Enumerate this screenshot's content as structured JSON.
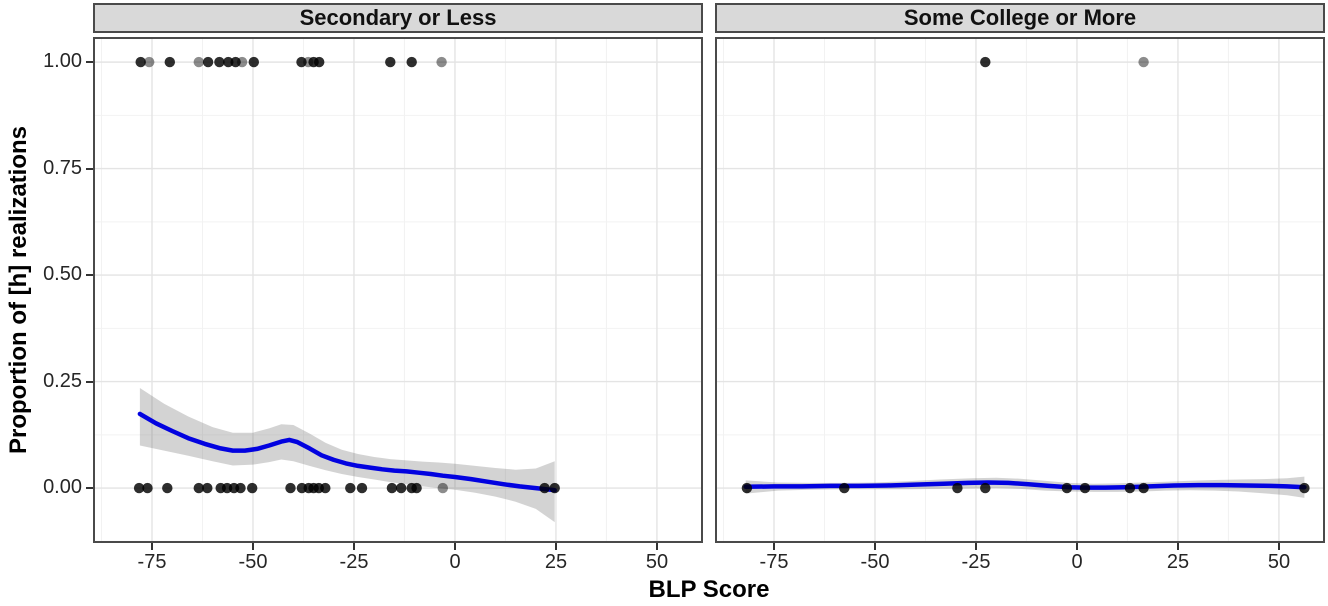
{
  "chart_data": {
    "type": "scatter",
    "title": "",
    "xlabel": "BLP Score",
    "ylabel": "Proportion of [h] realizations",
    "x_ticks": [
      -75,
      -50,
      -25,
      0,
      25,
      50
    ],
    "y_ticks": [
      0,
      0.25,
      0.5,
      0.75,
      1
    ],
    "x_minor_step": 12.5,
    "y_minor_step": 0.125,
    "x_range": [
      -89.6,
      61.4
    ],
    "y_range": [
      -0.129,
      1.059
    ],
    "grid": true,
    "legend": "none",
    "colors": {
      "smooth_line": "#0202e0",
      "ci_band": "rgba(110,110,110,0.30)",
      "point": "#000000",
      "strip_fill": "#d9d9d9",
      "panel_border": "#4a4a4a",
      "grid_major": "#e4e4e4",
      "grid_minor": "#f2f2f2"
    },
    "facets": [
      {
        "label": "Secondary or Less",
        "points": [
          {
            "x": -77.8,
            "y": 1,
            "shade": "dark"
          },
          {
            "x": -75.7,
            "y": 1,
            "shade": "gray"
          },
          {
            "x": -70.6,
            "y": 1,
            "shade": "dark"
          },
          {
            "x": -63.4,
            "y": 1,
            "shade": "gray"
          },
          {
            "x": -61.1,
            "y": 1,
            "shade": "dark"
          },
          {
            "x": -58.3,
            "y": 1,
            "shade": "dark"
          },
          {
            "x": -56.1,
            "y": 1,
            "shade": "dark"
          },
          {
            "x": -54.3,
            "y": 1,
            "shade": "dark"
          },
          {
            "x": -52.7,
            "y": 1,
            "shade": "gray"
          },
          {
            "x": -49.8,
            "y": 1,
            "shade": "dark"
          },
          {
            "x": -38.0,
            "y": 1,
            "shade": "dark"
          },
          {
            "x": -36.3,
            "y": 1,
            "shade": "gray"
          },
          {
            "x": -35.0,
            "y": 1,
            "shade": "dark"
          },
          {
            "x": -33.6,
            "y": 1,
            "shade": "dark"
          },
          {
            "x": -16.0,
            "y": 1,
            "shade": "dark"
          },
          {
            "x": -10.7,
            "y": 1,
            "shade": "dark"
          },
          {
            "x": -3.3,
            "y": 1,
            "shade": "gray"
          },
          {
            "x": -78.2,
            "y": 0,
            "shade": "dark"
          },
          {
            "x": -76.1,
            "y": 0,
            "shade": "dark"
          },
          {
            "x": -71.2,
            "y": 0,
            "shade": "dark"
          },
          {
            "x": -63.4,
            "y": 0,
            "shade": "dark"
          },
          {
            "x": -61.3,
            "y": 0,
            "shade": "dark"
          },
          {
            "x": -58.0,
            "y": 0,
            "shade": "dark"
          },
          {
            "x": -56.4,
            "y": 0,
            "shade": "dark"
          },
          {
            "x": -54.7,
            "y": 0,
            "shade": "dark"
          },
          {
            "x": -53.1,
            "y": 0,
            "shade": "dark"
          },
          {
            "x": -50.2,
            "y": 0,
            "shade": "dark"
          },
          {
            "x": -40.7,
            "y": 0,
            "shade": "dark"
          },
          {
            "x": -37.9,
            "y": 0,
            "shade": "dark"
          },
          {
            "x": -36.2,
            "y": 0,
            "shade": "dark"
          },
          {
            "x": -35.0,
            "y": 0,
            "shade": "dark"
          },
          {
            "x": -33.7,
            "y": 0,
            "shade": "dark"
          },
          {
            "x": -32.1,
            "y": 0,
            "shade": "dark"
          },
          {
            "x": -25.9,
            "y": 0,
            "shade": "dark"
          },
          {
            "x": -23.0,
            "y": 0,
            "shade": "dark"
          },
          {
            "x": -15.6,
            "y": 0,
            "shade": "dark"
          },
          {
            "x": -13.3,
            "y": 0,
            "shade": "dark"
          },
          {
            "x": -10.7,
            "y": 0,
            "shade": "dark"
          },
          {
            "x": -9.5,
            "y": 0,
            "shade": "dark"
          },
          {
            "x": -3.0,
            "y": 0,
            "shade": "gray"
          },
          {
            "x": 22.2,
            "y": 0,
            "shade": "dark"
          },
          {
            "x": 24.7,
            "y": 0,
            "shade": "dark"
          }
        ],
        "smooth": {
          "x": [
            -78,
            -74,
            -70,
            -66,
            -62,
            -58,
            -55,
            -52,
            -49,
            -46,
            -43,
            -41,
            -39,
            -36,
            -33,
            -30,
            -27,
            -24,
            -21,
            -18,
            -15,
            -12,
            -9,
            -6,
            -3,
            0,
            4,
            8,
            12,
            16,
            20,
            24.7
          ],
          "y": [
            0.174,
            0.152,
            0.134,
            0.117,
            0.104,
            0.093,
            0.088,
            0.088,
            0.092,
            0.1,
            0.109,
            0.113,
            0.108,
            0.093,
            0.077,
            0.066,
            0.058,
            0.052,
            0.048,
            0.044,
            0.041,
            0.039,
            0.036,
            0.033,
            0.029,
            0.026,
            0.021,
            0.015,
            0.009,
            0.004,
            0.0,
            -0.005
          ]
        },
        "band": {
          "x": [
            -78,
            -72,
            -66,
            -60,
            -55,
            -50,
            -46,
            -43,
            -40,
            -36,
            -32,
            -28,
            -24,
            -20,
            -16,
            -12,
            -8,
            -4,
            0,
            5,
            10,
            15,
            20,
            24.7
          ],
          "upper": [
            0.235,
            0.198,
            0.168,
            0.143,
            0.13,
            0.13,
            0.14,
            0.15,
            0.148,
            0.128,
            0.106,
            0.09,
            0.08,
            0.073,
            0.068,
            0.065,
            0.062,
            0.06,
            0.057,
            0.052,
            0.047,
            0.043,
            0.046,
            0.063
          ],
          "lower": [
            0.1,
            0.088,
            0.076,
            0.063,
            0.053,
            0.055,
            0.061,
            0.067,
            0.063,
            0.052,
            0.042,
            0.033,
            0.026,
            0.02,
            0.014,
            0.009,
            0.004,
            0.0,
            -0.004,
            -0.011,
            -0.02,
            -0.032,
            -0.049,
            -0.08
          ]
        }
      },
      {
        "label": "Some College or More",
        "points": [
          {
            "x": -22.7,
            "y": 1,
            "shade": "dark"
          },
          {
            "x": 16.5,
            "y": 1,
            "shade": "gray"
          },
          {
            "x": -81.7,
            "y": 0,
            "shade": "dark"
          },
          {
            "x": -57.6,
            "y": 0,
            "shade": "dark"
          },
          {
            "x": -29.6,
            "y": 0,
            "shade": "dark"
          },
          {
            "x": -22.7,
            "y": 0,
            "shade": "dark"
          },
          {
            "x": -2.5,
            "y": 0,
            "shade": "dark"
          },
          {
            "x": 2.0,
            "y": 0,
            "shade": "dark"
          },
          {
            "x": 13.1,
            "y": 0,
            "shade": "dark"
          },
          {
            "x": 16.5,
            "y": 0,
            "shade": "dark"
          },
          {
            "x": 56.3,
            "y": 0,
            "shade": "dark"
          }
        ],
        "smooth": {
          "x": [
            -82,
            -75,
            -68,
            -61,
            -54,
            -47,
            -40,
            -33,
            -27,
            -22,
            -17,
            -12,
            -7,
            -2,
            2,
            7,
            12,
            18,
            24,
            30,
            36,
            42,
            48,
            52,
            56.3
          ],
          "y": [
            0.003,
            0.004,
            0.004,
            0.005,
            0.005,
            0.006,
            0.008,
            0.01,
            0.012,
            0.013,
            0.012,
            0.009,
            0.005,
            0.002,
            0.001,
            0.001,
            0.002,
            0.004,
            0.006,
            0.007,
            0.007,
            0.006,
            0.005,
            0.004,
            0.002
          ]
        },
        "band": {
          "x": [
            -82,
            -74,
            -66,
            -58,
            -50,
            -42,
            -34,
            -26,
            -20,
            -14,
            -8,
            -2,
            4,
            10,
            16,
            22,
            28,
            34,
            40,
            46,
            52,
            56.3
          ],
          "upper": [
            0.018,
            0.013,
            0.012,
            0.012,
            0.013,
            0.016,
            0.02,
            0.023,
            0.024,
            0.022,
            0.017,
            0.012,
            0.01,
            0.011,
            0.013,
            0.015,
            0.017,
            0.019,
            0.02,
            0.021,
            0.023,
            0.027
          ],
          "lower": [
            -0.013,
            -0.006,
            -0.004,
            -0.003,
            -0.003,
            -0.003,
            -0.002,
            -0.001,
            0.0,
            -0.002,
            -0.006,
            -0.008,
            -0.009,
            -0.009,
            -0.008,
            -0.006,
            -0.005,
            -0.006,
            -0.008,
            -0.012,
            -0.017,
            -0.023
          ]
        }
      }
    ]
  }
}
